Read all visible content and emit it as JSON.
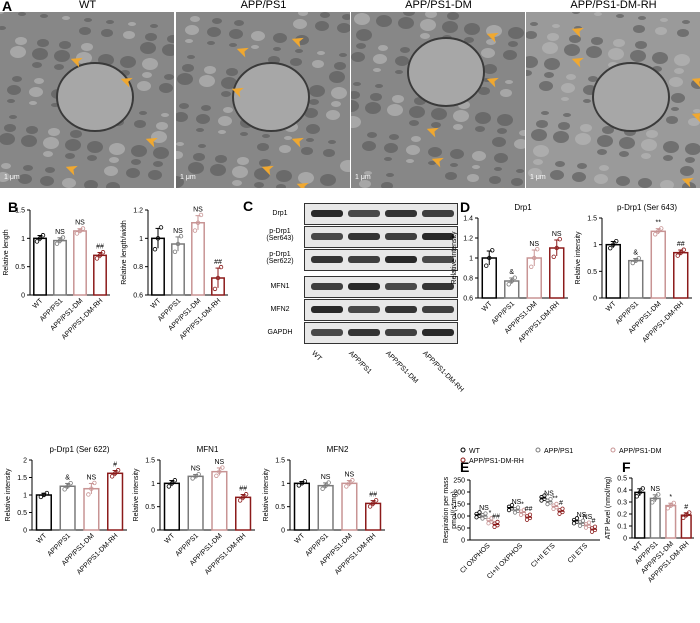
{
  "panel_A": {
    "letter": "A",
    "titles": [
      "WT",
      "APP/PS1",
      "APP/PS1-DM",
      "APP/PS1-DM-RH"
    ],
    "scale_label": "1 μm"
  },
  "panel_C": {
    "letter": "C",
    "proteins": [
      "Drp1",
      "p-Drp1\n(Ser643)",
      "p-Drp1\n(Ser622)",
      "MFN1",
      "MFN2",
      "GAPDH"
    ],
    "groups": [
      "WT",
      "APP/PS1",
      "APP/PS1-DM",
      "APP/PS1-DM-RH"
    ]
  },
  "colors": {
    "wt": "#000000",
    "app": "#7a7a7a",
    "dm": "#c89494",
    "rh": "#8b1a1a"
  },
  "chart_data": [
    {
      "id": "B1",
      "letter": "B",
      "type": "bar",
      "title": "",
      "ylabel": "Relative length",
      "ylim": [
        0,
        1.5
      ],
      "yticks": [
        0,
        0.5,
        1.0,
        1.5
      ],
      "categories": [
        "WT",
        "APP/PS1",
        "APP/PS1-DM",
        "APP/PS1-DM-RH"
      ],
      "values": [
        1.0,
        0.96,
        1.13,
        0.7
      ],
      "errors": [
        0.05,
        0.05,
        0.04,
        0.05
      ],
      "annotations": [
        "",
        "NS",
        "NS",
        "##"
      ]
    },
    {
      "id": "B2",
      "type": "bar",
      "title": "",
      "ylabel": "Relative length/width",
      "ylim": [
        0.6,
        1.2
      ],
      "yticks": [
        0.6,
        0.8,
        1.0,
        1.2
      ],
      "categories": [
        "WT",
        "APP/PS1",
        "APP/PS1-DM",
        "APP/PS1-DM-RH"
      ],
      "values": [
        1.0,
        0.96,
        1.11,
        0.72
      ],
      "errors": [
        0.07,
        0.05,
        0.05,
        0.07
      ],
      "annotations": [
        "",
        "NS",
        "NS",
        "##"
      ]
    },
    {
      "id": "D1",
      "letter": "D",
      "type": "bar",
      "title": "Drp1",
      "ylabel": "Relative intensity",
      "ylim": [
        0.6,
        1.4
      ],
      "yticks": [
        0.6,
        0.8,
        1.0,
        1.2,
        1.4
      ],
      "categories": [
        "WT",
        "APP/PS1",
        "APP/PS1-DM",
        "APP/PS1-DM-RH"
      ],
      "values": [
        1.0,
        0.77,
        1.0,
        1.1
      ],
      "errors": [
        0.07,
        0.03,
        0.08,
        0.08
      ],
      "annotations": [
        "",
        "&",
        "NS",
        "NS"
      ]
    },
    {
      "id": "D2",
      "type": "bar",
      "title": "p-Drp1 (Ser 643)",
      "ylabel": "Relative intensity",
      "ylim": [
        0,
        1.5
      ],
      "yticks": [
        0,
        0.5,
        1.0,
        1.5
      ],
      "categories": [
        "WT",
        "APP/PS1",
        "APP/PS1-DM",
        "APP/PS1-DM-RH"
      ],
      "values": [
        1.0,
        0.7,
        1.25,
        0.85
      ],
      "errors": [
        0.06,
        0.04,
        0.05,
        0.05
      ],
      "annotations": [
        "",
        "&",
        "**",
        "##"
      ]
    },
    {
      "id": "B3",
      "type": "bar",
      "title": "p-Drp1 (Ser 622)",
      "ylabel": "Relative intensity",
      "ylim": [
        0,
        2.0
      ],
      "yticks": [
        0,
        0.5,
        1.0,
        1.5,
        2.0
      ],
      "categories": [
        "WT",
        "APP/PS1",
        "APP/PS1-DM",
        "APP/PS1-DM-RH"
      ],
      "values": [
        1.0,
        1.25,
        1.18,
        1.62
      ],
      "errors": [
        0.05,
        0.08,
        0.15,
        0.08
      ],
      "annotations": [
        "",
        "&",
        "NS",
        "#"
      ]
    },
    {
      "id": "B4",
      "type": "bar",
      "title": "MFN1",
      "ylabel": "Relative intensity",
      "ylim": [
        0,
        1.5
      ],
      "yticks": [
        0,
        0.5,
        1.0,
        1.5
      ],
      "categories": [
        "WT",
        "APP/PS1",
        "APP/PS1-DM",
        "APP/PS1-DM-RH"
      ],
      "values": [
        1.0,
        1.15,
        1.25,
        0.7
      ],
      "errors": [
        0.06,
        0.04,
        0.08,
        0.06
      ],
      "annotations": [
        "",
        "NS",
        "NS",
        "##"
      ]
    },
    {
      "id": "B5",
      "type": "bar",
      "title": "MFN2",
      "ylabel": "Relative intensity",
      "ylim": [
        0,
        1.5
      ],
      "yticks": [
        0,
        0.5,
        1.0,
        1.5
      ],
      "categories": [
        "WT",
        "APP/PS1",
        "APP/PS1-DM",
        "APP/PS1-DM-RH"
      ],
      "values": [
        1.0,
        0.95,
        1.0,
        0.57
      ],
      "errors": [
        0.04,
        0.06,
        0.06,
        0.06
      ],
      "annotations": [
        "",
        "NS",
        "NS",
        "##"
      ]
    },
    {
      "id": "E",
      "letter": "E",
      "type": "bar",
      "title": "",
      "ylabel": "Respiration per mass\npmol/(s*mg)",
      "ylim": [
        0,
        250
      ],
      "yticks": [
        0,
        50,
        100,
        150,
        200,
        250
      ],
      "categories": [
        "CI OXPHOS",
        "CI+II OXPHOS",
        "CI+II ETS",
        "CII ETS"
      ],
      "series": [
        {
          "name": "WT",
          "values": [
            105,
            135,
            175,
            80
          ]
        },
        {
          "name": "APP/PS1",
          "values": [
            100,
            125,
            160,
            70
          ]
        },
        {
          "name": "APP/PS1-DM",
          "values": [
            80,
            115,
            140,
            62
          ]
        },
        {
          "name": "APP/PS1-DM-RH",
          "values": [
            65,
            95,
            120,
            45
          ]
        }
      ],
      "annotations": [
        [
          "",
          "NS",
          "*",
          "##"
        ],
        [
          "",
          "NS",
          "*",
          "##"
        ],
        [
          "",
          "NS",
          "**",
          "#"
        ],
        [
          "",
          "NS",
          "NS",
          "#"
        ]
      ]
    },
    {
      "id": "F",
      "letter": "F",
      "type": "bar",
      "title": "",
      "ylabel": "ATP level (nmol/mg)",
      "ylim": [
        0,
        0.5
      ],
      "yticks": [
        0,
        0.1,
        0.2,
        0.3,
        0.4,
        0.5
      ],
      "categories": [
        "WT",
        "APP/PS1",
        "APP/PS1-DM",
        "APP/PS1-DM-RH"
      ],
      "values": [
        0.38,
        0.33,
        0.27,
        0.19
      ],
      "errors": [
        0.03,
        0.03,
        0.02,
        0.02
      ],
      "annotations": [
        "",
        "NS",
        "*",
        "#"
      ]
    }
  ]
}
